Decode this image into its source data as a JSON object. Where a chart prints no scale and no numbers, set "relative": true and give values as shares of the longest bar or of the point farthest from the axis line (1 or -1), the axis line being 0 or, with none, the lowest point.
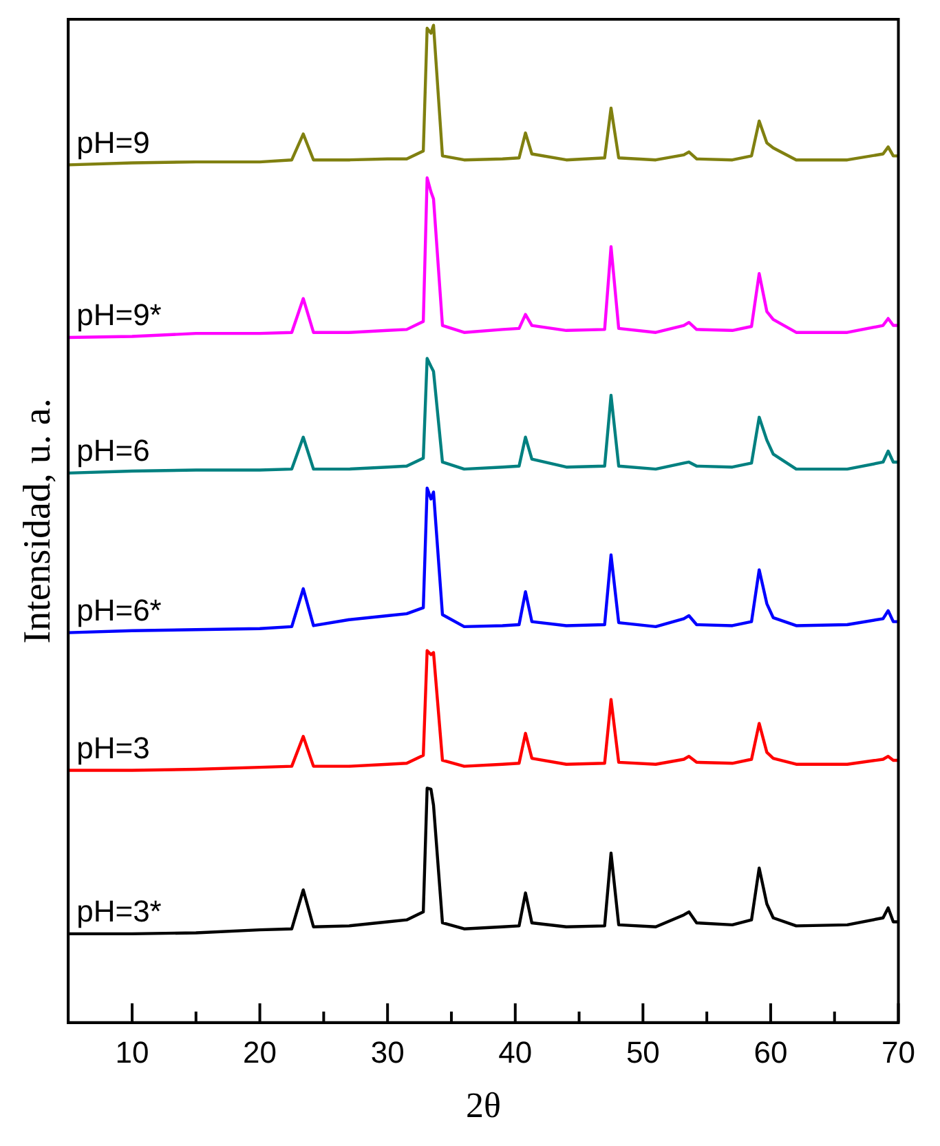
{
  "chart_data": {
    "type": "line",
    "xlabel": "2θ",
    "ylabel": "Intensidad, u. a.",
    "relative": true,
    "grid": false,
    "legend": false,
    "marker": "none",
    "line_style": "solid",
    "xlim": [
      5,
      70
    ],
    "xticks": [
      10,
      {
        "value": 15,
        "label": null
      },
      20,
      {
        "value": 25,
        "label": null
      },
      30,
      {
        "value": 35,
        "label": null
      },
      40,
      {
        "value": 45,
        "label": null
      },
      50,
      {
        "value": 55,
        "label": null
      },
      60,
      {
        "value": 65,
        "label": null
      },
      70
    ],
    "x": [
      5,
      10,
      15,
      20,
      22.5,
      23.4,
      24.2,
      27,
      30,
      31.5,
      32.8,
      33.1,
      33.4,
      33.6,
      34.3,
      36,
      39,
      40.3,
      40.8,
      41.3,
      44,
      47,
      47.5,
      48.1,
      51,
      53.2,
      53.6,
      54.2,
      57,
      58.5,
      59.1,
      59.7,
      60.2,
      62,
      66,
      68.8,
      69.2,
      69.6,
      70
    ],
    "series": [
      {
        "name": "pH=9",
        "color": "#808010",
        "values": [
          0.86,
          0.862,
          0.863,
          0.863,
          0.865,
          0.891,
          0.865,
          0.865,
          0.866,
          0.866,
          0.874,
          0.997,
          0.992,
          1.0,
          0.869,
          0.865,
          0.866,
          0.867,
          0.892,
          0.871,
          0.865,
          0.867,
          0.917,
          0.867,
          0.865,
          0.87,
          0.873,
          0.866,
          0.865,
          0.869,
          0.904,
          0.882,
          0.877,
          0.865,
          0.865,
          0.871,
          0.878,
          0.869,
          0.869
        ]
      },
      {
        "name": "pH=9*",
        "color": "#ff00ff",
        "values": [
          0.687,
          0.688,
          0.691,
          0.691,
          0.692,
          0.726,
          0.692,
          0.692,
          0.694,
          0.695,
          0.703,
          0.847,
          0.833,
          0.826,
          0.699,
          0.692,
          0.695,
          0.696,
          0.71,
          0.699,
          0.694,
          0.695,
          0.778,
          0.696,
          0.692,
          0.699,
          0.702,
          0.695,
          0.694,
          0.698,
          0.751,
          0.713,
          0.705,
          0.692,
          0.692,
          0.699,
          0.706,
          0.699,
          0.699
        ]
      },
      {
        "name": "pH=6",
        "color": "#008080",
        "values": [
          0.551,
          0.553,
          0.554,
          0.554,
          0.555,
          0.587,
          0.555,
          0.555,
          0.557,
          0.558,
          0.566,
          0.666,
          0.658,
          0.653,
          0.562,
          0.555,
          0.557,
          0.558,
          0.587,
          0.565,
          0.557,
          0.558,
          0.629,
          0.558,
          0.555,
          0.561,
          0.562,
          0.558,
          0.557,
          0.561,
          0.607,
          0.584,
          0.57,
          0.555,
          0.555,
          0.562,
          0.573,
          0.562,
          0.562
        ]
      },
      {
        "name": "pH=6*",
        "color": "#0000ff",
        "values": [
          0.391,
          0.393,
          0.394,
          0.395,
          0.397,
          0.435,
          0.398,
          0.404,
          0.408,
          0.41,
          0.416,
          0.536,
          0.525,
          0.532,
          0.409,
          0.397,
          0.398,
          0.399,
          0.432,
          0.402,
          0.398,
          0.399,
          0.469,
          0.401,
          0.397,
          0.405,
          0.408,
          0.399,
          0.398,
          0.402,
          0.454,
          0.42,
          0.406,
          0.398,
          0.399,
          0.405,
          0.413,
          0.402,
          0.402
        ]
      },
      {
        "name": "pH=3",
        "color": "#ff0000",
        "values": [
          0.253,
          0.253,
          0.254,
          0.256,
          0.257,
          0.287,
          0.257,
          0.257,
          0.259,
          0.26,
          0.268,
          0.373,
          0.369,
          0.371,
          0.263,
          0.257,
          0.259,
          0.26,
          0.29,
          0.265,
          0.259,
          0.26,
          0.324,
          0.261,
          0.259,
          0.264,
          0.267,
          0.261,
          0.26,
          0.264,
          0.3,
          0.271,
          0.265,
          0.259,
          0.259,
          0.264,
          0.267,
          0.263,
          0.263
        ]
      },
      {
        "name": "pH=3*",
        "color": "#000000",
        "values": [
          0.089,
          0.089,
          0.09,
          0.093,
          0.094,
          0.133,
          0.096,
          0.097,
          0.101,
          0.103,
          0.111,
          0.235,
          0.234,
          0.218,
          0.1,
          0.094,
          0.096,
          0.097,
          0.13,
          0.1,
          0.096,
          0.097,
          0.17,
          0.098,
          0.096,
          0.108,
          0.111,
          0.1,
          0.098,
          0.103,
          0.155,
          0.119,
          0.105,
          0.097,
          0.098,
          0.105,
          0.115,
          0.101,
          0.101
        ]
      }
    ]
  }
}
